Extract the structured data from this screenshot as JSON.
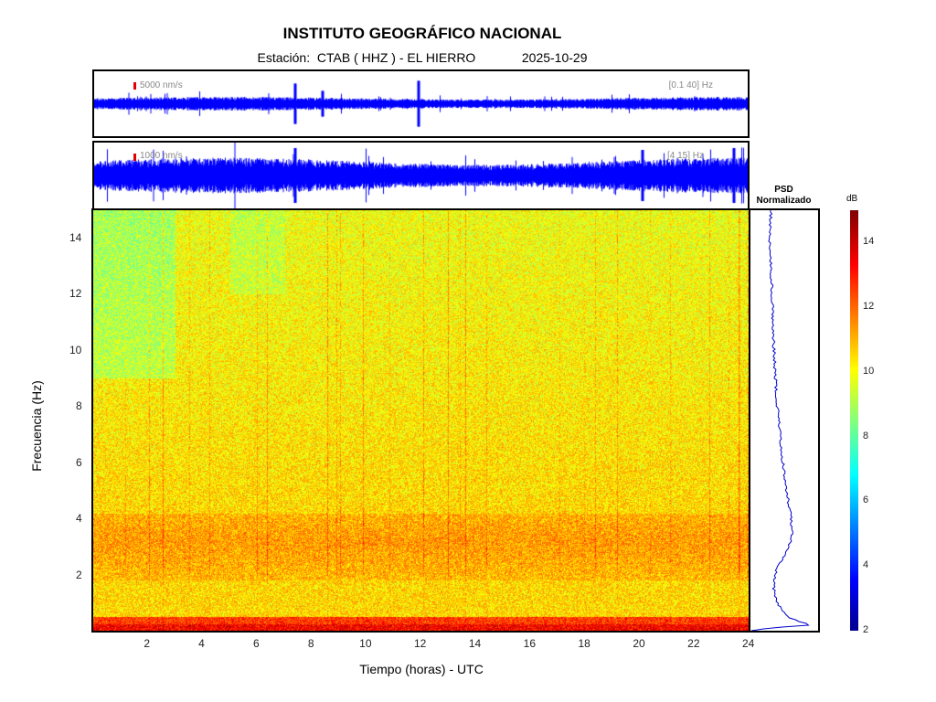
{
  "header": {
    "title": "INSTITUTO GEOGRÁFICO NACIONAL",
    "station_line": "Estación:  CTAB ( HHZ ) - EL HIERRO             2025-10-29"
  },
  "traces": [
    {
      "scale_label": "5000 nm/s",
      "band_label": "[0.1 40] Hz",
      "color": "#0000ff",
      "scale_color": "#e00000"
    },
    {
      "scale_label": "1000 nm/s",
      "band_label": "[4 15] Hz",
      "color": "#0000ff",
      "scale_color": "#e00000"
    }
  ],
  "chart_data": {
    "type": "heatmap",
    "xlabel": "Tiempo (horas) - UTC",
    "ylabel": "Frecuencia  (Hz)",
    "xlim": [
      0,
      24
    ],
    "ylim": [
      0,
      15
    ],
    "xticks": [
      "2",
      "4",
      "6",
      "8",
      "10",
      "12",
      "14",
      "16",
      "18",
      "20",
      "22",
      "24"
    ],
    "yticks": [
      "2",
      "4",
      "6",
      "8",
      "10",
      "12",
      "14"
    ],
    "colormap": "jet",
    "colorbar": {
      "label": "dB",
      "range": [
        2,
        15
      ],
      "ticks": [
        "2",
        "4",
        "6",
        "8",
        "10",
        "12",
        "14"
      ]
    },
    "psd": {
      "title_line1": "PSD",
      "title_line2": "Normalizado",
      "color": "#0000cc",
      "freq": [
        0,
        0.1,
        0.2,
        0.3,
        0.5,
        0.8,
        1,
        1.5,
        2,
        2.5,
        3,
        3.5,
        4,
        4.5,
        5,
        6,
        7,
        8,
        9,
        10,
        11,
        12,
        13,
        14,
        15
      ],
      "value": [
        0.02,
        0.3,
        0.9,
        0.75,
        0.55,
        0.45,
        0.4,
        0.34,
        0.36,
        0.45,
        0.57,
        0.62,
        0.6,
        0.57,
        0.54,
        0.48,
        0.44,
        0.4,
        0.37,
        0.35,
        0.33,
        0.32,
        0.3,
        0.29,
        0.3
      ]
    }
  }
}
